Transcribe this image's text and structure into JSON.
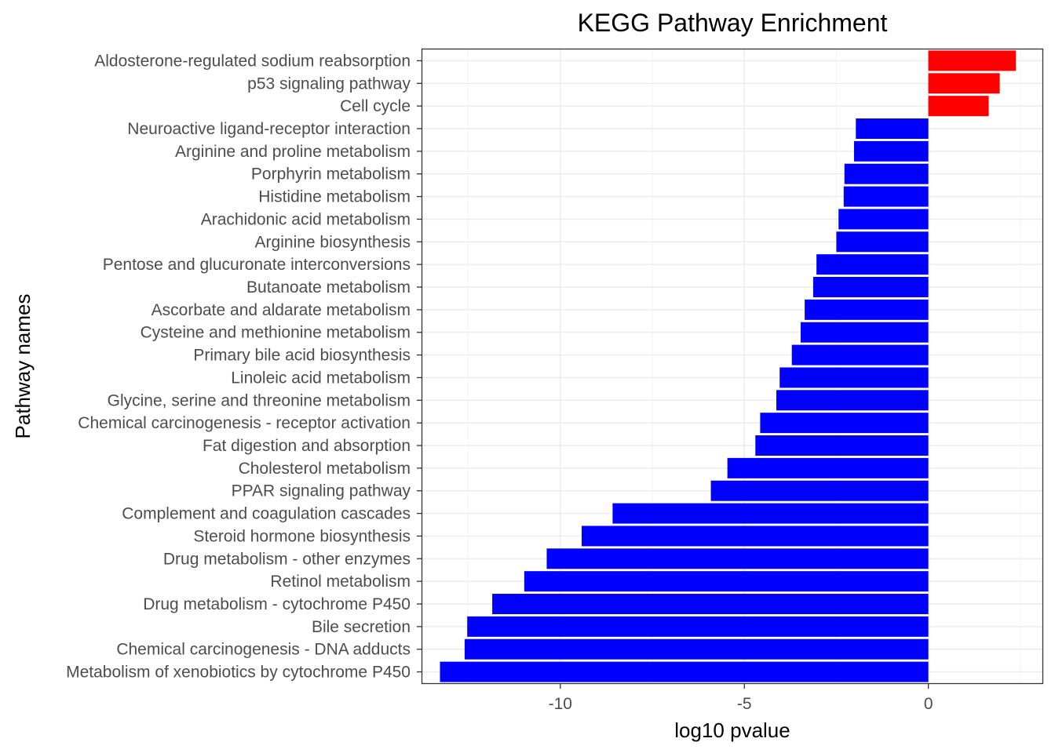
{
  "chart_data": {
    "type": "bar",
    "orientation": "horizontal",
    "title": "KEGG Pathway Enrichment",
    "xlabel": "log10 pvalue",
    "ylabel": "Pathway names",
    "xlim": [
      -13.75,
      3.1
    ],
    "x_ticks": [
      -10,
      -5,
      0
    ],
    "x_tick_labels": [
      "-10",
      "-5",
      "0"
    ],
    "grid": true,
    "legend": "none",
    "colors": {
      "positive": "#ff0000",
      "negative": "#0000ff"
    },
    "categories": [
      "Aldosterone-regulated sodium reabsorption",
      "p53 signaling pathway",
      "Cell cycle",
      "Neuroactive ligand-receptor interaction",
      "Arginine and proline metabolism",
      "Porphyrin metabolism",
      "Histidine metabolism",
      "Arachidonic acid metabolism",
      "Arginine biosynthesis",
      "Pentose and glucuronate interconversions",
      "Butanoate metabolism",
      "Ascorbate and aldarate metabolism",
      "Cysteine and methionine metabolism",
      "Primary bile acid biosynthesis",
      "Linoleic acid metabolism",
      "Glycine, serine and threonine metabolism",
      "Chemical carcinogenesis - receptor activation",
      "Fat digestion and absorption",
      "Cholesterol metabolism",
      "PPAR signaling pathway",
      "Complement and coagulation cascades",
      "Steroid hormone biosynthesis",
      "Drug metabolism - other enzymes",
      "Retinol metabolism",
      "Drug metabolism - cytochrome P450",
      "Bile secretion",
      "Chemical carcinogenesis - DNA adducts",
      "Metabolism of xenobiotics by cytochrome P450"
    ],
    "values": [
      2.38,
      1.94,
      1.64,
      -1.97,
      -2.02,
      -2.28,
      -2.3,
      -2.44,
      -2.5,
      -3.04,
      -3.13,
      -3.36,
      -3.47,
      -3.71,
      -4.04,
      -4.13,
      -4.57,
      -4.7,
      -5.46,
      -5.91,
      -8.58,
      -9.42,
      -10.37,
      -10.98,
      -11.85,
      -12.53,
      -12.6,
      -13.27
    ]
  }
}
